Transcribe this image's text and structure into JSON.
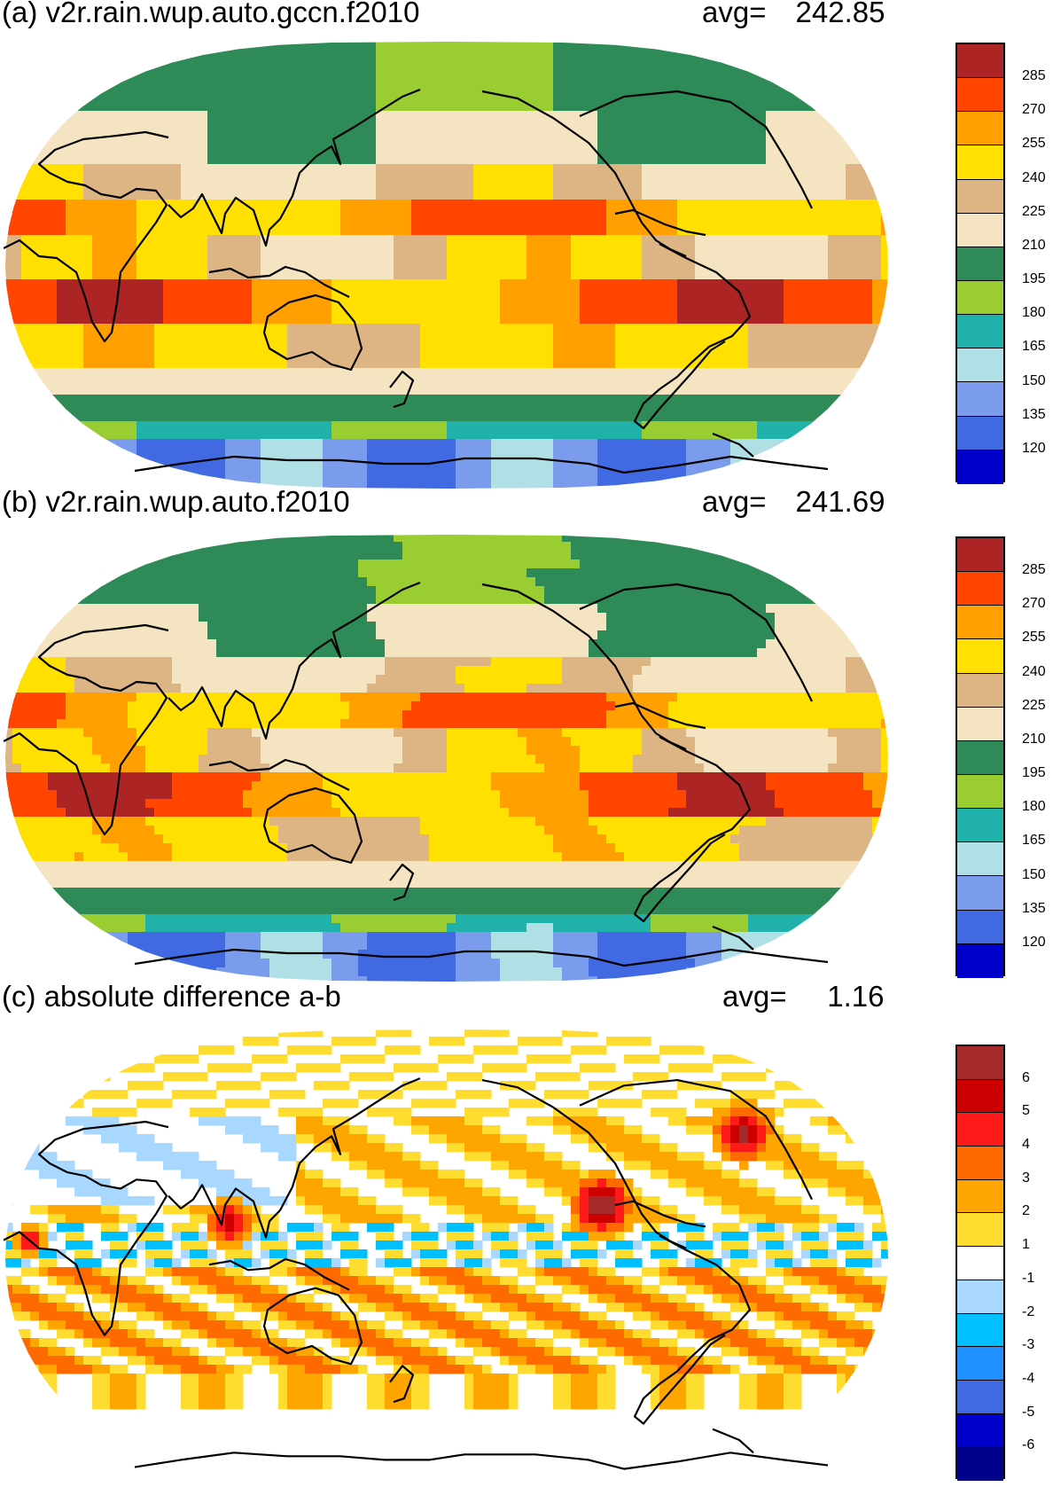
{
  "panels": [
    {
      "id": "a",
      "title": "(a) v2r.rain.wup.auto.gccn.f2010",
      "avg_label": "avg=",
      "avg_value": "242.85",
      "type": "field",
      "colorbar_labels": [
        "285",
        "270",
        "255",
        "240",
        "225",
        "210",
        "195",
        "180",
        "165",
        "150",
        "135",
        "120"
      ]
    },
    {
      "id": "b",
      "title": "(b) v2r.rain.wup.auto.f2010",
      "avg_label": "avg=",
      "avg_value": "241.69",
      "type": "field",
      "colorbar_labels": [
        "285",
        "270",
        "255",
        "240",
        "225",
        "210",
        "195",
        "180",
        "165",
        "150",
        "135",
        "120"
      ]
    },
    {
      "id": "c",
      "title": "(c) absolute difference a-b",
      "avg_label": "avg=",
      "avg_value": "1.16",
      "type": "difference",
      "colorbar_labels": [
        "6",
        "5",
        "4",
        "3",
        "2",
        "1",
        "-1",
        "-2",
        "-3",
        "-4",
        "-5",
        "-6"
      ]
    }
  ],
  "colorbars": {
    "field": [
      "#ad2424",
      "#ff4500",
      "#ffa000",
      "#ffe000",
      "#ddb483",
      "#f5e4c1",
      "#2e8b57",
      "#9acd32",
      "#20b2aa",
      "#b0e0e6",
      "#7b9cec",
      "#4169e1",
      "#0000cd"
    ],
    "difference": [
      "#a52a2a",
      "#cd0000",
      "#ff1a1a",
      "#ff6a00",
      "#ffa500",
      "#ffdc30",
      "#ffffff",
      "#a8d8ff",
      "#00bfff",
      "#1e90ff",
      "#4169e1",
      "#0000cd",
      "#00008b"
    ]
  }
}
